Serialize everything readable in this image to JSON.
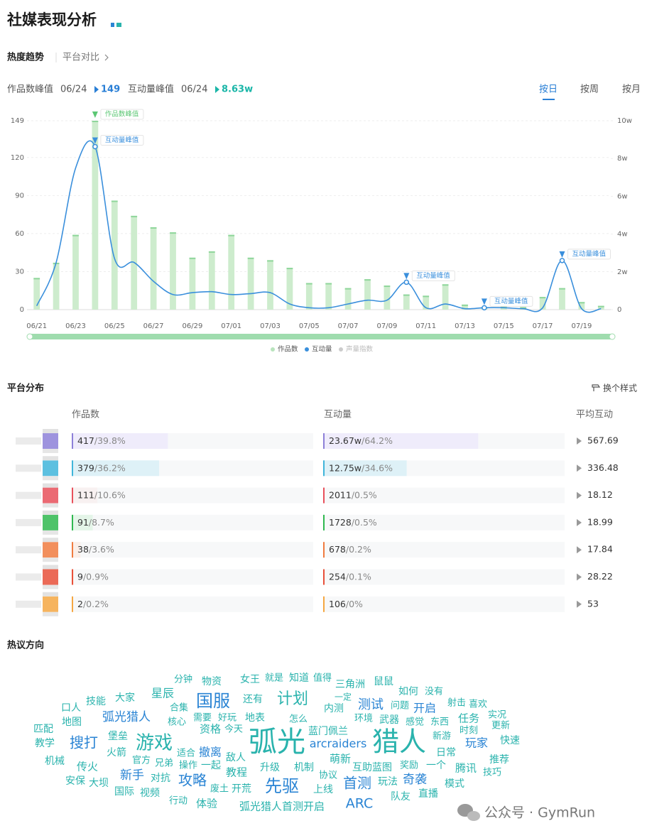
{
  "header": {
    "title": "社媒表现分析"
  },
  "tabs": [
    "热度趋势",
    "平台对比"
  ],
  "peaks": [
    {
      "label": "作品数峰值",
      "date": "06/24",
      "value": 149
    },
    {
      "label": "互动量峰值",
      "date": "06/24",
      "value": {
        "value": 86300,
        "label": "8.63w"
      }
    }
  ],
  "granularity": [
    "按日",
    "按周",
    "按月"
  ],
  "chart_data": {
    "type": "combo",
    "categories": [
      "06/21",
      null,
      "06/23",
      null,
      "06/25",
      null,
      "06/27",
      null,
      "06/29",
      null,
      "07/01",
      null,
      "07/03",
      null,
      "07/05",
      null,
      "07/07",
      null,
      "07/09",
      null,
      "07/11",
      null,
      "07/13",
      null,
      "07/15",
      null,
      "07/17",
      null,
      "07/19",
      null
    ],
    "series": [
      {
        "name": "作品数",
        "type": "bar",
        "color": "#cdeccd",
        "values": [
          25,
          37,
          59,
          149,
          86,
          74,
          65,
          61,
          41,
          46,
          59,
          41,
          39,
          33,
          21,
          21,
          17,
          24,
          19,
          12,
          11,
          20,
          4,
          2,
          3,
          2,
          10,
          17,
          6,
          3
        ]
      },
      {
        "name": "互动量",
        "type": "line",
        "color": "#3a8fdc",
        "axis": "y2",
        "values": [
          0.2,
          2.5,
          7.5,
          8.63,
          2.7,
          2.5,
          1.5,
          0.8,
          0.9,
          0.95,
          0.8,
          0.85,
          0.9,
          0.3,
          0.1,
          0.1,
          0.3,
          0.5,
          0.5,
          1.45,
          0.1,
          0.3,
          0.05,
          0.1,
          0.1,
          0.05,
          0.1,
          2.6,
          0.05,
          0.05
        ]
      }
    ],
    "legend_inactive": [
      "声量指数"
    ],
    "ylim": [
      0,
      149
    ],
    "yticks": [
      0,
      30,
      60,
      90,
      120,
      149
    ],
    "y2lim": [
      0,
      10
    ],
    "y2ticks": [
      0,
      {
        "value": 2,
        "label": "2w"
      },
      {
        "value": 4,
        "label": "4w"
      },
      {
        "value": 6,
        "label": "6w"
      },
      {
        "value": 8,
        "label": "8w"
      },
      {
        "value": 10,
        "label": "10w"
      }
    ],
    "grid": true,
    "annotations": [
      {
        "text": "作品数峰值",
        "series": 0,
        "index": 3
      },
      {
        "text": "互动量峰值",
        "series": 1,
        "index": 3
      },
      {
        "text": "互动量峰值",
        "series": 1,
        "index": 19
      },
      {
        "text": "互动量峰值",
        "series": 1,
        "index": 23
      },
      {
        "text": "互动量峰值",
        "series": 1,
        "index": 27
      }
    ]
  },
  "platform": {
    "title": "平台分布",
    "style_toggle": "换个样式",
    "columns": [
      "作品数",
      "互动量",
      "平均互动"
    ],
    "separator": "/",
    "rows": [
      {
        "color": "#8d80d8",
        "fill": "#efecfb",
        "works": 417,
        "works_share": {
          "value": 39.8,
          "label": "39.8%"
        },
        "interactions": {
          "value": 236700,
          "label": "23.67w"
        },
        "interaction_share": {
          "value": 64.2,
          "label": "64.2%"
        },
        "avg": 567.69
      },
      {
        "color": "#3fb5da",
        "fill": "#def1f7",
        "works": 379,
        "works_share": {
          "value": 36.2,
          "label": "36.2%"
        },
        "interactions": {
          "value": 127500,
          "label": "12.75w"
        },
        "interaction_share": {
          "value": 34.6,
          "label": "34.6%"
        },
        "avg": 336.48
      },
      {
        "color": "#e8505b",
        "fill": "#f8f1f1",
        "works": 111,
        "works_share": {
          "value": 10.6,
          "label": "10.6%"
        },
        "interactions": 2011,
        "interaction_share": {
          "value": 0.5,
          "label": "0.5%"
        },
        "avg": 18.12
      },
      {
        "color": "#2fb84f",
        "fill": "#e4f5e8",
        "works": 91,
        "works_share": {
          "value": 8.7,
          "label": "8.7%"
        },
        "interactions": 1728,
        "interaction_share": {
          "value": 0.5,
          "label": "0.5%"
        },
        "avg": 18.99
      },
      {
        "color": "#f07b3f",
        "fill": "#fbefe8",
        "works": 38,
        "works_share": {
          "value": 3.6,
          "label": "3.6%"
        },
        "interactions": 678,
        "interaction_share": {
          "value": 0.2,
          "label": "0.2%"
        },
        "avg": 17.84
      },
      {
        "color": "#e8503a",
        "fill": "#fbefe8",
        "works": 9,
        "works_share": {
          "value": 0.9,
          "label": "0.9%"
        },
        "interactions": 254,
        "interaction_share": {
          "value": 0.1,
          "label": "0.1%"
        },
        "avg": 28.22
      },
      {
        "color": "#f5a742",
        "fill": "#fbf3e6",
        "works": 2,
        "works_share": {
          "value": 0.2,
          "label": "0.2%"
        },
        "interactions": 106,
        "interaction_share": {
          "value": 0,
          "label": "0%"
        },
        "avg": 53
      }
    ]
  },
  "hot_topics": {
    "title": "热议方向",
    "colors": [
      "#2ab3ad",
      "#2a84d4"
    ],
    "words": [
      "分钟",
      "物资",
      "女王",
      "就是",
      "知道",
      "值得",
      "三角洲",
      "鼠鼠",
      "大家",
      "星辰",
      "国服",
      "还有",
      "计划",
      "一定",
      "如何",
      "没有",
      "技能",
      "口人",
      "合集",
      "测试",
      "内测",
      "问题",
      "开启",
      "射击",
      "喜欢",
      "弧光猎人",
      "地图",
      "需要",
      "好玩",
      "地表",
      "怎么",
      "环境",
      "武器",
      "感觉",
      "东西",
      "任务",
      "实况",
      "匹配",
      "堡垒",
      "核心",
      "资格",
      "今天",
      "蓝门佩兰",
      "新游",
      "时刻",
      "更新",
      "教学",
      "搜打",
      "游戏",
      "弧光",
      "猎人",
      "arcraiders",
      "玩家",
      "快速",
      "适合",
      "撤离",
      "敌人",
      "火箭",
      "日常",
      "机械",
      "传火",
      "官方",
      "兄弟",
      "操作",
      "一起",
      "教程",
      "升级",
      "机制",
      "萌新",
      "互助蓝图",
      "奖励",
      "一个",
      "腾讯",
      "推荐",
      "技巧",
      "新手",
      "协议",
      "安保",
      "大坝",
      "对抗",
      "攻略",
      "先驱",
      "首测",
      "玩法",
      "奇袭",
      "模式",
      "国际",
      "视频",
      "废土",
      "开荒",
      "上线",
      "队友",
      "直播",
      "行动",
      "体验",
      "弧光猎人首测开启",
      "ARC"
    ]
  },
  "watermark": {
    "text": "公众号 · GymRun"
  }
}
